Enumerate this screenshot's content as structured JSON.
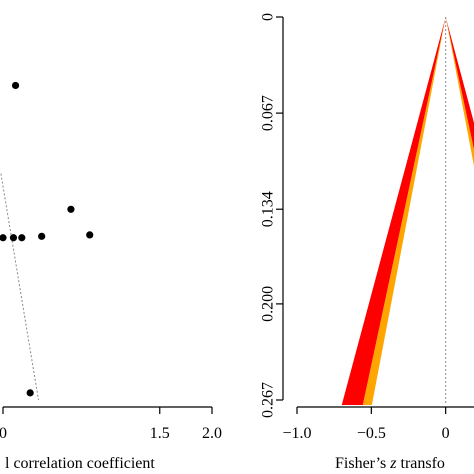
{
  "chart_data": [
    {
      "type": "scatter",
      "xlabel": "l correlation coefficient",
      "xlim": [
        0.0,
        2.0
      ],
      "xticks": [
        {
          "value": 0.0,
          "label": "0"
        },
        {
          "value": 1.5,
          "label": "1.5"
        },
        {
          "value": 2.0,
          "label": "2.0"
        }
      ],
      "ylim": [
        0.0,
        0.267
      ],
      "points": [
        {
          "x": 0.12,
          "y": 0.046
        },
        {
          "x": 0.0,
          "y": 0.153
        },
        {
          "x": 0.1,
          "y": 0.153
        },
        {
          "x": 0.18,
          "y": 0.153
        },
        {
          "x": 0.37,
          "y": 0.152
        },
        {
          "x": 0.65,
          "y": 0.133
        },
        {
          "x": 0.83,
          "y": 0.151
        },
        {
          "x": 0.26,
          "y": 0.262
        }
      ],
      "guide_line": {
        "x": [
          -0.02,
          0.34
        ],
        "y": [
          0.108,
          0.267
        ]
      },
      "grid": false,
      "colors": {
        "points": "#000000",
        "guide": "#888888"
      }
    },
    {
      "type": "area",
      "xlabel": "Fisher’s z transfo",
      "xlim": [
        -1.0,
        0.5
      ],
      "xticks": [
        {
          "value": -1.0,
          "label": "−1.0"
        },
        {
          "value": -0.5,
          "label": "−0.5"
        },
        {
          "value": 0.0,
          "label": "0"
        }
      ],
      "ylim": [
        0.0,
        0.267
      ],
      "yticks": [
        {
          "value": 0.0,
          "label": "0"
        },
        {
          "value": 0.067,
          "label": "0.067"
        },
        {
          "value": 0.134,
          "label": "0.134"
        },
        {
          "value": 0.2,
          "label": "0.200"
        },
        {
          "value": 0.267,
          "label": "0.267"
        }
      ],
      "y_reversed": true,
      "funnel": {
        "apex_x": 0.0,
        "bands_at_bottom": [
          {
            "name": "",
            "color": "#ff0000",
            "x_outer": -0.69,
            "x_inner": -0.55
          },
          {
            "name": "",
            "color": "#ffa500",
            "x_outer": -0.55,
            "x_inner": -0.49
          }
        ]
      },
      "center_line_x": 0.0,
      "grid": false
    }
  ]
}
